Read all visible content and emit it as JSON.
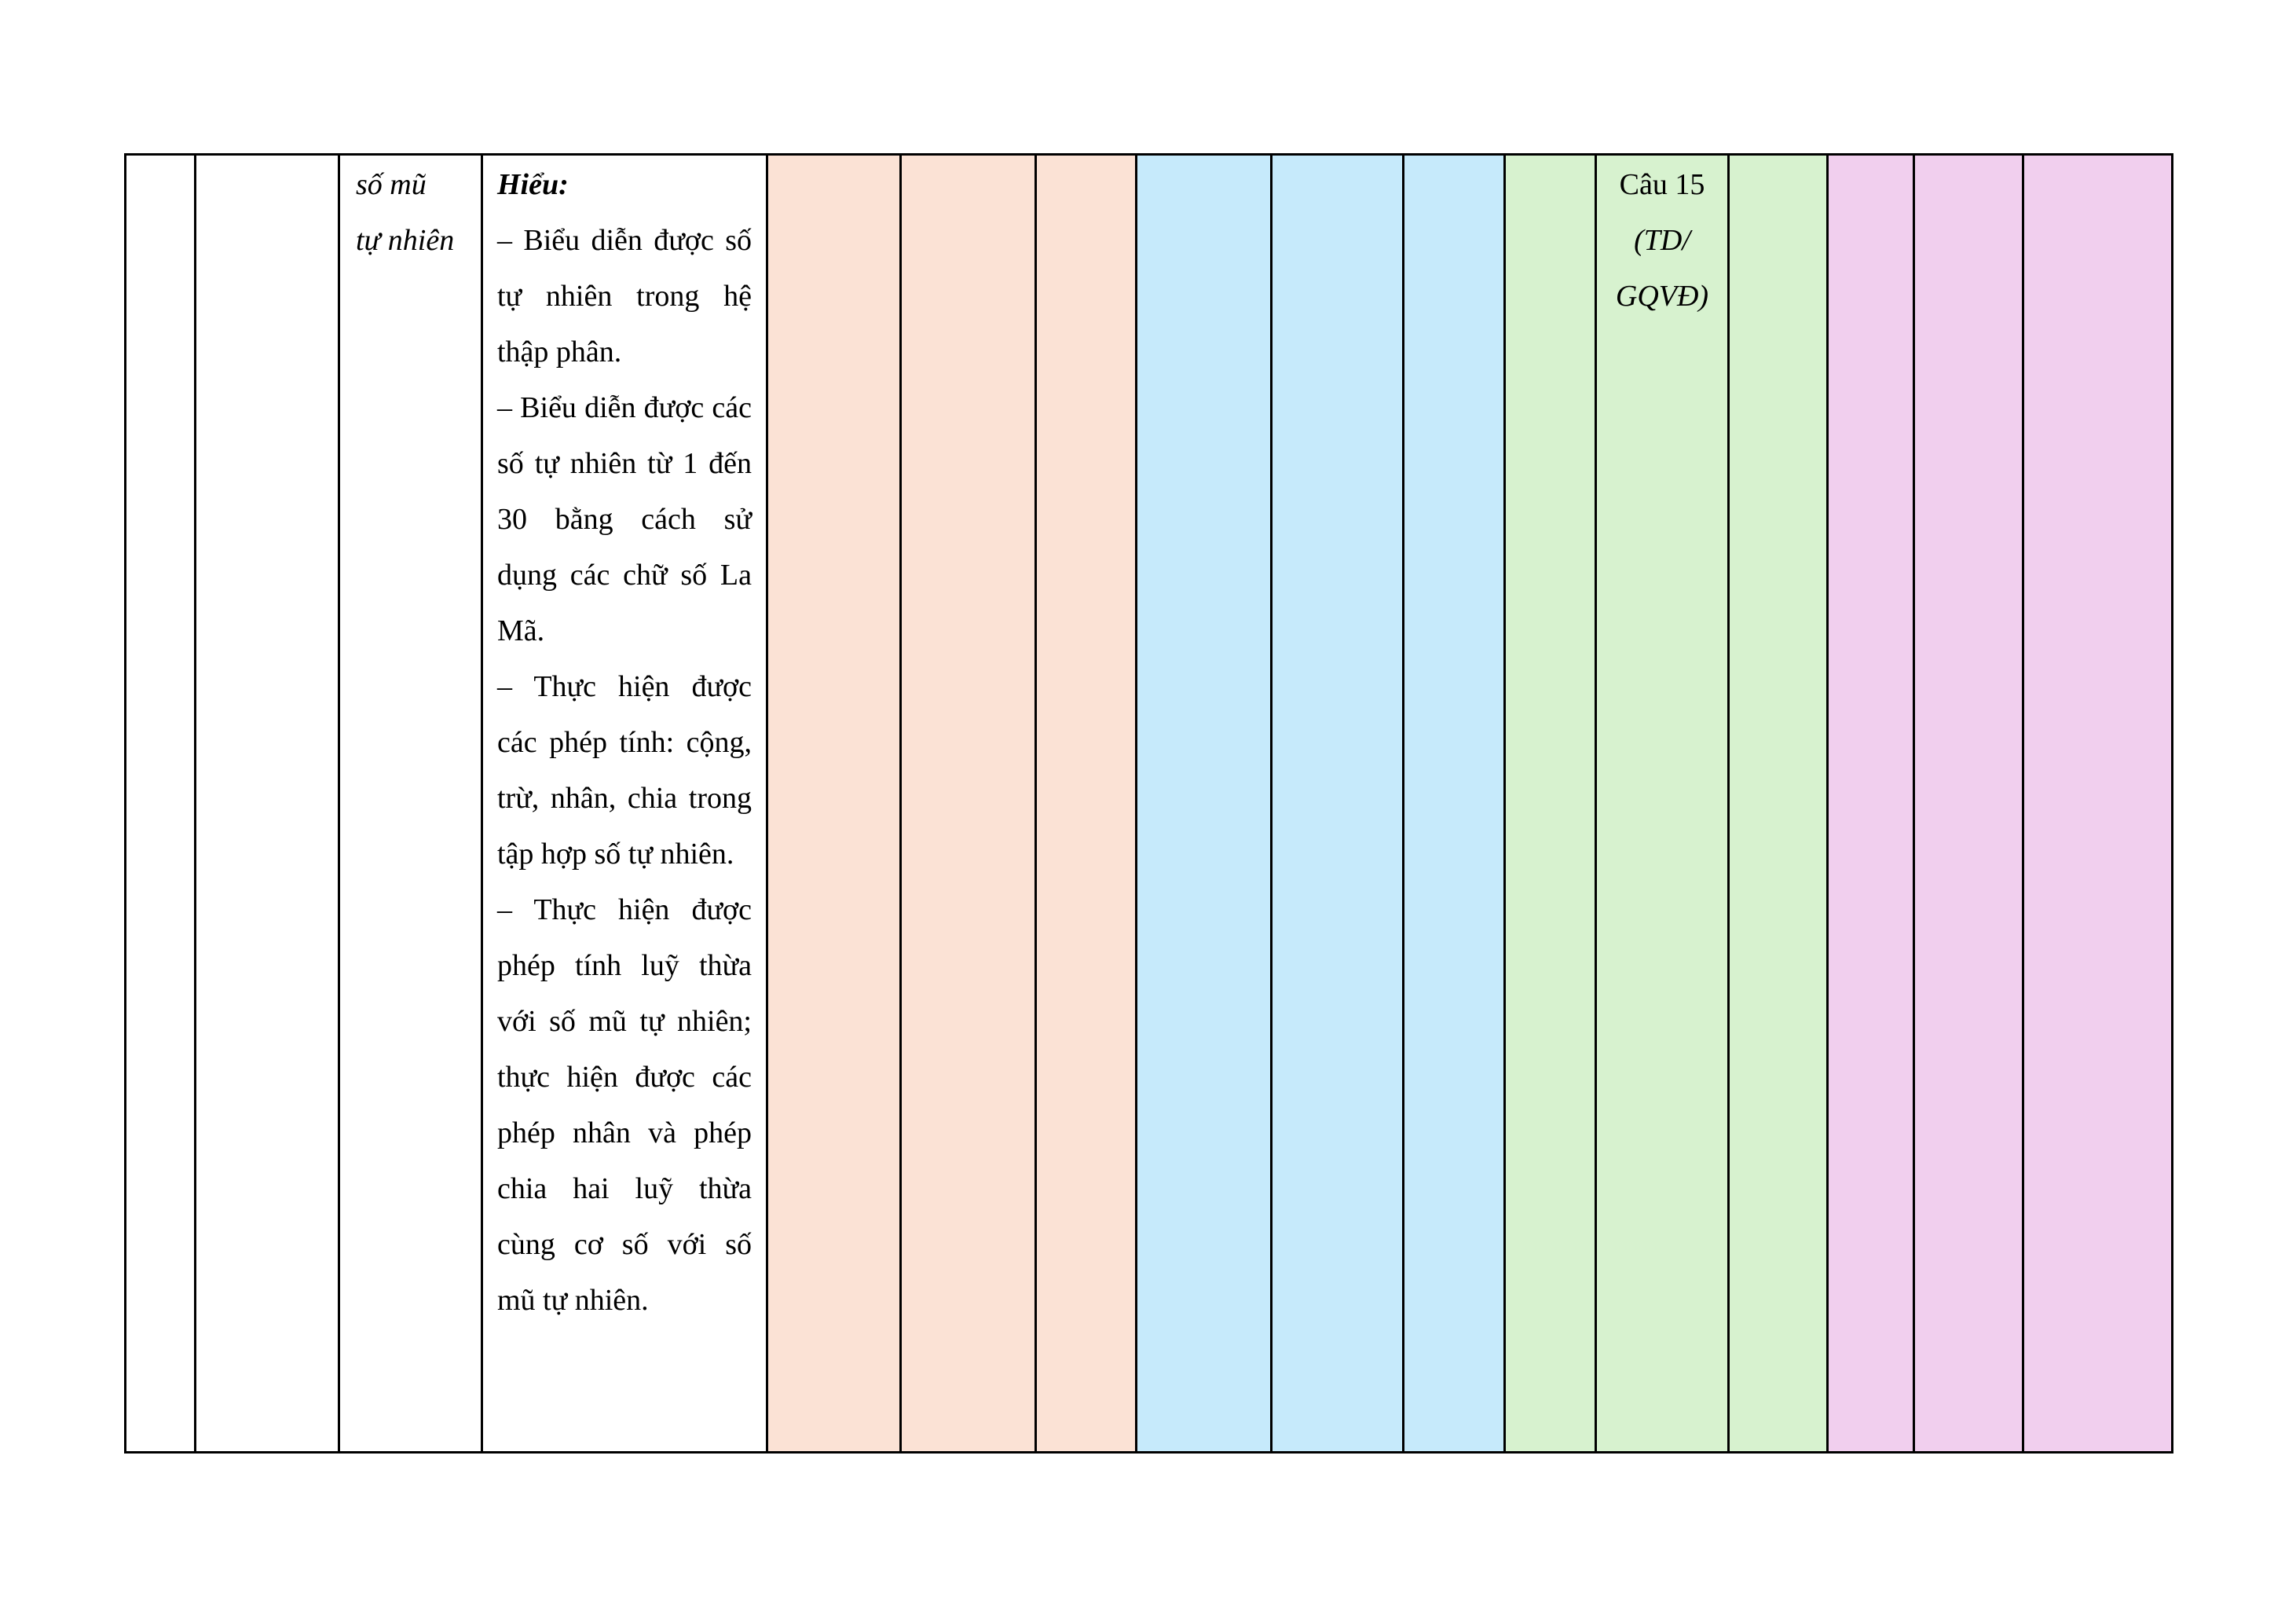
{
  "document": {
    "table": {
      "border_color": "#000000",
      "colors": {
        "peach": "#fbe2d5",
        "blue": "#c6eafb",
        "green": "#d7f2cf",
        "pink": "#f1cfee"
      },
      "topic": {
        "lines": [
          "số mũ",
          "tự nhiên"
        ]
      },
      "requirements": {
        "heading": "Hiểu:",
        "bullets": [
          "– Biểu diễn được số tự nhiên trong hệ thập phân.",
          "– Biểu diễn được các số tự nhiên từ 1 đến 30 bằng cách sử dụng các chữ số La Mã.",
          "– Thực hiện được các phép tính: cộng, trừ, nhân, chia trong tập hợp số tự nhiên.",
          "– Thực hiện được phép tính luỹ thừa với số mũ tự nhiên; thực hiện được các phép nhân và phép chia hai luỹ thừa cùng cơ số với số mũ tự nhiên."
        ]
      },
      "question": {
        "lines": [
          "Câu 15",
          "(TD/",
          "GQVĐ)"
        ]
      }
    }
  }
}
